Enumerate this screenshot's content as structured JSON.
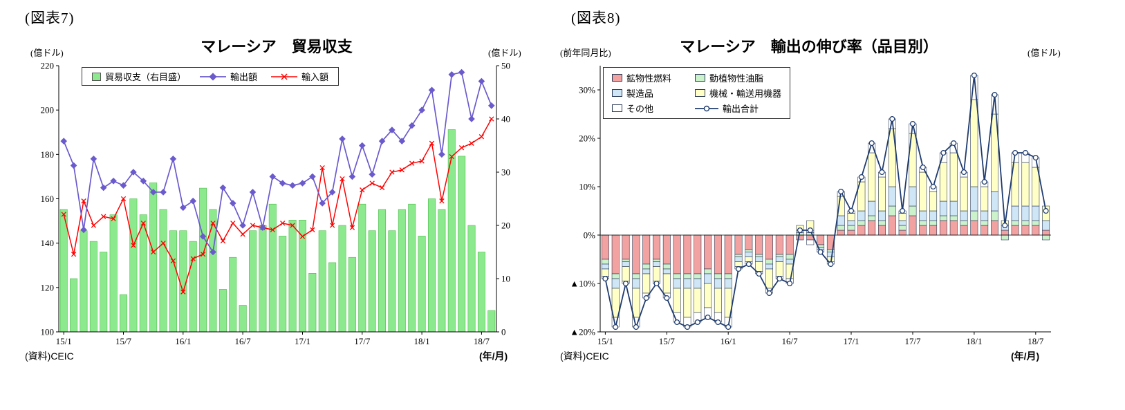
{
  "fig7": {
    "tag": "(図表7)",
    "title": "マレーシア　貿易収支",
    "left_axis_unit": "(億ドル)",
    "right_axis_unit": "(億ドル)",
    "source": "(資料)CEIC",
    "x_axis_unit": "(年/月)"
  },
  "fig8": {
    "tag": "(図表8)",
    "title": "マレーシア　輸出の伸び率（品目別）",
    "left_axis_unit": "(前年同月比)",
    "right_axis_unit": "(億ドル)",
    "source": "(資料)CEIC",
    "x_axis_unit": "(年/月)"
  },
  "chart_data": [
    {
      "type": "bar",
      "subtype": "bar+line dual axis",
      "title": "マレーシア　貿易収支",
      "months": [
        "15/1",
        "15/2",
        "15/3",
        "15/4",
        "15/5",
        "15/6",
        "15/7",
        "15/8",
        "15/9",
        "15/10",
        "15/11",
        "15/12",
        "16/1",
        "16/2",
        "16/3",
        "16/4",
        "16/5",
        "16/6",
        "16/7",
        "16/8",
        "16/9",
        "16/10",
        "16/11",
        "16/12",
        "17/1",
        "17/2",
        "17/3",
        "17/4",
        "17/5",
        "17/6",
        "17/7",
        "17/8",
        "17/9",
        "17/10",
        "17/11",
        "17/12",
        "18/1",
        "18/2",
        "18/3",
        "18/4",
        "18/5",
        "18/6",
        "18/7",
        "18/8"
      ],
      "x_tick_indices": [
        0,
        6,
        12,
        18,
        24,
        30,
        36,
        42
      ],
      "x_tick_labels": [
        "15/1",
        "15/7",
        "16/1",
        "16/7",
        "17/1",
        "17/7",
        "18/1",
        "18/7"
      ],
      "left_axis": {
        "unit": "(億ドル)",
        "min": 100,
        "max": 220,
        "ticks": [
          100,
          120,
          140,
          160,
          180,
          200,
          220
        ]
      },
      "right_axis": {
        "unit": "(億ドル)",
        "min": 0,
        "max": 50,
        "ticks": [
          0,
          10,
          20,
          30,
          40,
          50
        ]
      },
      "series": [
        {
          "name": "貿易収支（右目盛）",
          "type": "bar",
          "axis": "right",
          "color": "#8DE98D",
          "stroke": "#4CBB4C",
          "values": [
            23,
            10,
            19,
            17,
            15,
            22,
            7,
            25,
            22,
            28,
            23,
            19,
            19,
            17,
            27,
            23,
            8,
            14,
            5,
            19,
            20,
            24,
            18,
            21,
            21,
            11,
            19,
            13,
            20,
            14,
            24,
            19,
            23,
            19,
            23,
            24,
            18,
            25,
            23,
            38,
            33,
            20,
            15,
            4
          ]
        },
        {
          "name": "輸出額",
          "type": "line",
          "marker": "diamond",
          "axis": "left",
          "color": "#6A5ACD",
          "values": [
            186,
            175,
            146,
            178,
            165,
            168,
            166,
            172,
            168,
            163,
            163,
            178,
            156,
            159,
            143,
            136,
            165,
            158,
            148,
            163,
            147,
            170,
            167,
            166,
            167,
            170,
            158,
            163,
            187,
            170,
            184,
            171,
            186,
            191,
            186,
            193,
            200,
            209,
            180,
            216,
            217,
            196,
            213,
            202
          ]
        },
        {
          "name": "輸入額",
          "type": "line",
          "marker": "x",
          "axis": "left",
          "color": "#FF0000",
          "values": [
            153,
            135,
            159,
            148,
            152,
            151,
            160,
            139,
            149,
            136,
            140,
            132,
            118,
            133,
            135,
            149,
            141,
            149,
            144,
            148,
            147,
            146,
            149,
            148,
            143,
            146,
            174,
            148,
            169,
            147,
            164,
            167,
            165,
            172,
            173,
            176,
            177,
            185,
            159,
            179,
            183,
            185,
            188,
            196
          ]
        }
      ]
    },
    {
      "type": "bar",
      "subtype": "stacked bar + total line",
      "title": "マレーシア　輸出の伸び率（品目別）",
      "months": [
        "15/1",
        "15/2",
        "15/3",
        "15/4",
        "15/5",
        "15/6",
        "15/7",
        "15/8",
        "15/9",
        "15/10",
        "15/11",
        "15/12",
        "16/1",
        "16/2",
        "16/3",
        "16/4",
        "16/5",
        "16/6",
        "16/7",
        "16/8",
        "16/9",
        "16/10",
        "16/11",
        "16/12",
        "17/1",
        "17/2",
        "17/3",
        "17/4",
        "17/5",
        "17/6",
        "17/7",
        "17/8",
        "17/9",
        "17/10",
        "17/11",
        "17/12",
        "18/1",
        "18/2",
        "18/3",
        "18/4",
        "18/5",
        "18/6",
        "18/7",
        "18/8"
      ],
      "x_tick_indices": [
        0,
        6,
        12,
        18,
        24,
        30,
        36,
        42
      ],
      "x_tick_labels": [
        "15/1",
        "15/7",
        "16/1",
        "16/7",
        "17/1",
        "17/7",
        "18/1",
        "18/7"
      ],
      "y_axis": {
        "unit": "(前年同月比)",
        "min": -20,
        "max": 35,
        "ticks": [
          -20,
          -10,
          0,
          10,
          20,
          30
        ],
        "negative_prefix": "▲"
      },
      "series": [
        {
          "name": "鉱物性燃料",
          "color": "#F3A2A2",
          "values": [
            -5,
            -8,
            -5,
            -8,
            -6,
            -5,
            -6,
            -8,
            -8,
            -8,
            -7,
            -8,
            -8,
            -4,
            -3,
            -4,
            -5,
            -4,
            -4,
            -1,
            -1,
            -2,
            -3,
            1,
            1,
            2,
            3,
            2,
            4,
            1,
            4,
            2,
            2,
            3,
            3,
            2,
            3,
            2,
            3,
            1,
            2,
            2,
            2,
            1
          ]
        },
        {
          "name": "動植物性油脂",
          "color": "#CCF2CC",
          "values": [
            -1,
            -1,
            -0.5,
            -1,
            -1,
            -0.5,
            -1,
            -1,
            -1,
            -1,
            -1,
            -1,
            -1,
            -0.5,
            -0.5,
            -0.5,
            -1,
            -0.5,
            -1,
            0.5,
            0.5,
            -0.5,
            -0.5,
            1,
            1,
            1,
            1,
            1,
            2,
            1,
            2,
            1,
            1,
            1,
            1,
            1,
            2,
            1,
            2,
            -1,
            1,
            1,
            1,
            -1
          ]
        },
        {
          "name": "製造品",
          "color": "#CFE6F7",
          "values": [
            -1,
            -2,
            -1,
            -2,
            -1,
            -1,
            -1,
            -2,
            -2,
            -2,
            -2,
            -2,
            -2,
            -1,
            -1,
            -1,
            -1,
            -1,
            -1,
            0.5,
            0.5,
            -0.5,
            -1,
            2,
            1,
            2,
            3,
            2,
            4,
            1,
            4,
            2,
            2,
            3,
            3,
            2,
            5,
            2,
            4,
            1,
            3,
            3,
            3,
            2
          ]
        },
        {
          "name": "機械・輸送用機器",
          "color": "#FFFFC6",
          "values": [
            -1.5,
            -6,
            -3,
            -6,
            -4,
            -3,
            -4,
            -5,
            -6,
            -5,
            -5,
            -5,
            -6,
            -1,
            -1,
            -2,
            -4,
            -3,
            -3,
            1,
            2,
            0,
            -1,
            4,
            1.5,
            6,
            10,
            7,
            12,
            1.5,
            11,
            8,
            4,
            8,
            10,
            7,
            18,
            5,
            16,
            1,
            9,
            9,
            8,
            3
          ]
        },
        {
          "name": "その他",
          "color": "#FFFFFF",
          "values": [
            -0.5,
            -2,
            -0.5,
            -2,
            -1,
            -0.5,
            -1,
            -2,
            -2,
            -2,
            -2,
            -2,
            -2,
            -0.5,
            -0.5,
            -0.5,
            -1,
            -0.5,
            -1,
            0,
            -1,
            -0.5,
            -0.5,
            1,
            0.5,
            1,
            2,
            1,
            2,
            0.5,
            2,
            1,
            1,
            2,
            2,
            1,
            5,
            1,
            4,
            0,
            2,
            2,
            2,
            0
          ]
        }
      ],
      "total_line": {
        "name": "輸出合計",
        "color": "#1F3B6E",
        "values": [
          -9,
          -19,
          -10,
          -19,
          -13,
          -10,
          -13,
          -18,
          -19,
          -18,
          -17,
          -18,
          -19,
          -7,
          -6,
          -8,
          -12,
          -9,
          -10,
          1,
          1,
          -3.5,
          -6,
          9,
          5,
          12,
          19,
          13,
          24,
          5,
          23,
          14,
          10,
          17,
          19,
          13,
          33,
          11,
          29,
          2,
          17,
          17,
          16,
          5
        ]
      }
    }
  ]
}
